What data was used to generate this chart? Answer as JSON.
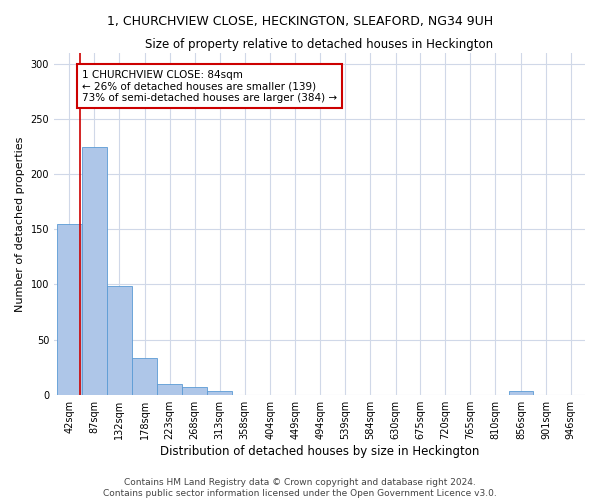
{
  "title": "1, CHURCHVIEW CLOSE, HECKINGTON, SLEAFORD, NG34 9UH",
  "subtitle": "Size of property relative to detached houses in Heckington",
  "xlabel": "Distribution of detached houses by size in Heckington",
  "ylabel": "Number of detached properties",
  "bins": [
    42,
    87,
    132,
    178,
    223,
    268,
    313,
    358,
    404,
    449,
    494,
    539,
    584,
    630,
    675,
    720,
    765,
    810,
    856,
    901,
    946
  ],
  "bar_heights": [
    155,
    225,
    99,
    33,
    10,
    7,
    3,
    0,
    0,
    0,
    0,
    0,
    0,
    0,
    0,
    0,
    0,
    0,
    3,
    0,
    0
  ],
  "bar_color": "#aec6e8",
  "bar_edge_color": "#5b9bd5",
  "grid_color": "#d0d8e8",
  "property_size": 84,
  "property_line_color": "#cc0000",
  "annotation_line1": "1 CHURCHVIEW CLOSE: 84sqm",
  "annotation_line2": "← 26% of detached houses are smaller (139)",
  "annotation_line3": "73% of semi-detached houses are larger (384) →",
  "annotation_box_color": "#ffffff",
  "annotation_border_color": "#cc0000",
  "ylim": [
    0,
    310
  ],
  "footnote": "Contains HM Land Registry data © Crown copyright and database right 2024.\nContains public sector information licensed under the Open Government Licence v3.0.",
  "title_fontsize": 9,
  "subtitle_fontsize": 8.5,
  "xlabel_fontsize": 8.5,
  "ylabel_fontsize": 8,
  "tick_fontsize": 7,
  "annotation_fontsize": 7.5,
  "footnote_fontsize": 6.5
}
